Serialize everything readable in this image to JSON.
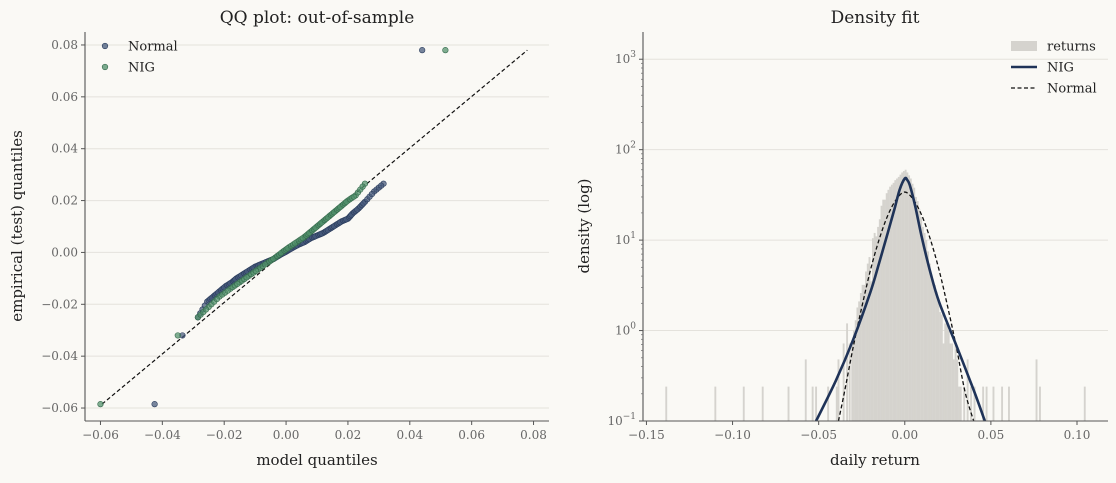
{
  "chart_data": [
    {
      "type": "scatter",
      "title": "QQ plot: out-of-sample",
      "xlabel": "model quantiles",
      "ylabel": "empirical (test) quantiles",
      "xlim": [
        -0.065,
        0.085
      ],
      "ylim": [
        -0.065,
        0.085
      ],
      "xticks": [
        -0.06,
        -0.04,
        -0.02,
        0.0,
        0.02,
        0.04,
        0.06,
        0.08
      ],
      "xtick_labels": [
        "−0.06",
        "−0.04",
        "−0.02",
        "0.00",
        "0.02",
        "0.04",
        "0.06",
        "0.08"
      ],
      "yticks": [
        -0.06,
        -0.04,
        -0.02,
        0.0,
        0.02,
        0.04,
        0.06,
        0.08
      ],
      "ytick_labels": [
        "−0.06",
        "−0.04",
        "−0.02",
        "0.00",
        "0.02",
        "0.04",
        "0.06",
        "0.08"
      ],
      "grid": "y",
      "legend": "top-left",
      "reference_line": {
        "style": "dashed",
        "x": [
          -0.0595,
          0.078
        ],
        "y": [
          -0.0585,
          0.078
        ]
      },
      "series": [
        {
          "name": "Normal",
          "color": "#44587a",
          "x": [
            -0.0425,
            -0.0335,
            -0.0285,
            -0.0255,
            -0.0235,
            -0.0215,
            -0.0195,
            -0.0175,
            -0.016,
            -0.014,
            -0.012,
            -0.01,
            -0.008,
            -0.006,
            -0.004,
            -0.002,
            0.0,
            0.002,
            0.004,
            0.006,
            0.008,
            0.01,
            0.012,
            0.014,
            0.016,
            0.018,
            0.02,
            0.0215,
            0.0235,
            0.0255,
            0.0285,
            0.0315,
            0.044
          ],
          "y": [
            -0.0585,
            -0.032,
            -0.025,
            -0.019,
            -0.017,
            -0.015,
            -0.013,
            -0.0115,
            -0.01,
            -0.0085,
            -0.007,
            -0.0055,
            -0.0045,
            -0.0035,
            -0.0025,
            -0.001,
            0.0003,
            0.0017,
            0.003,
            0.004,
            0.0055,
            0.0065,
            0.0075,
            0.009,
            0.0105,
            0.012,
            0.013,
            0.015,
            0.017,
            0.0195,
            0.0235,
            0.0265,
            0.078
          ]
        },
        {
          "name": "NIG",
          "color": "#4f8f6a",
          "x": [
            -0.06,
            -0.035,
            -0.0285,
            -0.025,
            -0.0215,
            -0.018,
            -0.015,
            -0.012,
            -0.009,
            -0.006,
            -0.0035,
            -0.001,
            0.001,
            0.0035,
            0.006,
            0.008,
            0.01,
            0.012,
            0.014,
            0.016,
            0.018,
            0.02,
            0.0225,
            0.0255,
            0.0515
          ],
          "y": [
            -0.0585,
            -0.032,
            -0.025,
            -0.021,
            -0.017,
            -0.014,
            -0.0115,
            -0.009,
            -0.0065,
            -0.004,
            -0.002,
            0.0003,
            0.002,
            0.004,
            0.006,
            0.008,
            0.01,
            0.012,
            0.014,
            0.016,
            0.018,
            0.02,
            0.022,
            0.0265,
            0.078
          ]
        }
      ]
    },
    {
      "type": "bar",
      "title": "Density fit",
      "xlabel": "daily return",
      "ylabel": "density (log)",
      "xlim": [
        -0.152,
        0.118
      ],
      "yscale": "log",
      "ylim": [
        0.1,
        2000
      ],
      "xticks": [
        -0.15,
        -0.1,
        -0.05,
        0.0,
        0.05,
        0.1
      ],
      "xtick_labels": [
        "−0.15",
        "−0.10",
        "−0.05",
        "0.00",
        "0.05",
        "0.10"
      ],
      "yticks": [
        0.1,
        1,
        10,
        100,
        1000
      ],
      "ytick_labels": [
        {
          "base": "10",
          "exp": "−1"
        },
        {
          "base": "10",
          "exp": "0"
        },
        {
          "base": "10",
          "exp": "1"
        },
        {
          "base": "10",
          "exp": "2"
        },
        {
          "base": "10",
          "exp": "3"
        }
      ],
      "grid": "y",
      "legend": "top-right",
      "series": [
        {
          "name": "returns",
          "color": "#d5d3ce",
          "bin_width": 0.0011,
          "bin_centers": [
            -0.1385,
            -0.11,
            -0.0935,
            -0.0825,
            -0.0675,
            -0.0575,
            -0.0535,
            -0.0515,
            -0.0445,
            -0.0395,
            -0.0385,
            -0.0355,
            -0.0335,
            -0.032,
            -0.0305,
            -0.0295,
            -0.0285,
            -0.0275,
            -0.0265,
            -0.0255,
            -0.0245,
            -0.0235,
            -0.0225,
            -0.0215,
            -0.0205,
            -0.0195,
            -0.0185,
            -0.0175,
            -0.0165,
            -0.0155,
            -0.0145,
            -0.0135,
            -0.0125,
            -0.0115,
            -0.0105,
            -0.0095,
            -0.0085,
            -0.0075,
            -0.0065,
            -0.0055,
            -0.0045,
            -0.0035,
            -0.0025,
            -0.0015,
            -0.0005,
            0.0005,
            0.0015,
            0.0025,
            0.0035,
            0.0045,
            0.0055,
            0.0065,
            0.0075,
            0.0085,
            0.0095,
            0.0105,
            0.0115,
            0.0125,
            0.0135,
            0.0145,
            0.0155,
            0.0165,
            0.0175,
            0.0185,
            0.0195,
            0.0205,
            0.0215,
            0.0225,
            0.0235,
            0.0245,
            0.0255,
            0.0265,
            0.0275,
            0.0285,
            0.0295,
            0.0305,
            0.0315,
            0.0325,
            0.0345,
            0.0365,
            0.0385,
            0.0405,
            0.0455,
            0.0475,
            0.0515,
            0.0565,
            0.0605,
            0.0765,
            0.0785,
            0.1045
          ],
          "values": [
            0.24,
            0.24,
            0.24,
            0.24,
            0.24,
            0.48,
            0.24,
            0.24,
            0.24,
            0.24,
            0.48,
            0.72,
            1.2,
            0.72,
            0.72,
            1.0,
            1.3,
            1.8,
            2.1,
            2.6,
            3.2,
            3.2,
            4.5,
            5.5,
            6.5,
            3.5,
            10.5,
            12,
            11,
            14,
            17,
            24,
            28,
            28,
            33,
            36,
            39,
            41,
            43,
            46,
            48,
            50,
            53,
            56,
            58,
            60,
            56,
            52,
            48,
            42,
            38,
            30,
            27,
            22,
            18,
            14,
            12,
            10,
            7.5,
            5.5,
            3.7,
            3.4,
            3.2,
            2.7,
            2.1,
            1.6,
            1.5,
            0.72,
            1.2,
            1.2,
            1.0,
            0.72,
            0.72,
            0.48,
            0.72,
            0.48,
            0.24,
            0.24,
            0.24,
            0.48,
            0.24,
            0.24,
            0.24,
            0.24,
            0.24,
            0.24,
            0.24,
            0.48,
            0.24,
            0.24
          ]
        },
        {
          "name": "NIG",
          "color": "#1f3358",
          "type": "line",
          "x": [
            -0.0515,
            -0.04,
            -0.03,
            -0.02,
            -0.015,
            -0.01,
            -0.006,
            -0.003,
            0.0,
            0.0015,
            0.003,
            0.006,
            0.01,
            0.015,
            0.02,
            0.03,
            0.04,
            0.0465
          ],
          "y": [
            0.1,
            0.28,
            0.79,
            2.65,
            5.5,
            11.8,
            22,
            36,
            48,
            46,
            40,
            24,
            10.5,
            4.3,
            2.05,
            0.68,
            0.22,
            0.1
          ]
        },
        {
          "name": "Normal",
          "color": "#111111",
          "type": "line",
          "style": "dashed",
          "x": [
            -0.0385,
            -0.035,
            -0.03,
            -0.025,
            -0.02,
            -0.015,
            -0.01,
            -0.005,
            0.0,
            0.005,
            0.01,
            0.015,
            0.02,
            0.025,
            0.03,
            0.035,
            0.04
          ],
          "y": [
            0.1,
            0.21,
            0.65,
            1.8,
            4.6,
            10,
            18.5,
            28,
            34,
            28,
            18.5,
            10,
            4.6,
            1.8,
            0.65,
            0.21,
            0.1
          ]
        }
      ]
    }
  ]
}
